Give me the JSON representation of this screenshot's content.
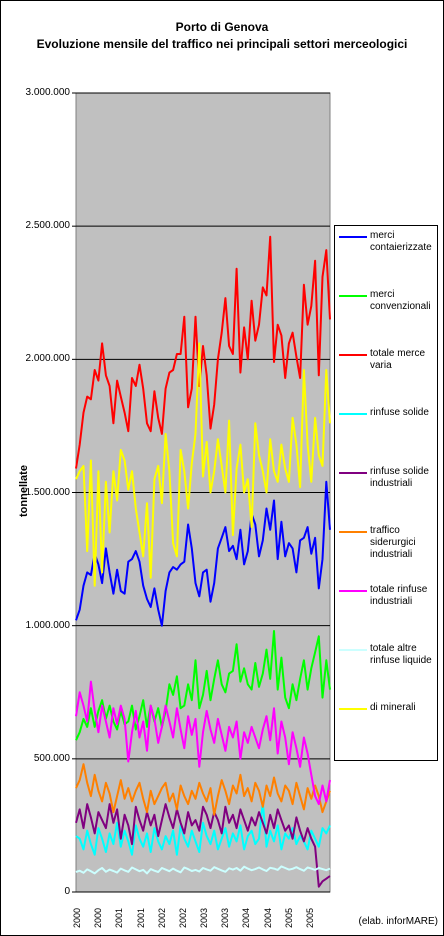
{
  "chart_data": {
    "type": "line",
    "title": "Porto di Genova",
    "subtitle": "Evoluzione mensile del traffico nei principali settori merceologici",
    "ylabel": "tonnellate",
    "xlabel": "",
    "ylim": [
      0,
      3000000
    ],
    "yticks": [
      0,
      500000,
      1000000,
      1500000,
      2000000,
      2500000,
      3000000
    ],
    "ytick_labels": [
      "0",
      "500.000",
      "1.000.000",
      "1.500.000",
      "2.000.000",
      "2.500.000",
      "3.000.000"
    ],
    "xtick_labels": [
      "2000",
      "2000",
      "2001",
      "2001",
      "2002",
      "2002",
      "2003",
      "2003",
      "2004",
      "2004",
      "2005",
      "2005"
    ],
    "grid": true,
    "legend_position": "right",
    "plot_background": "#c0c0c0",
    "n_months": 69,
    "credit": "(elab. inforMARE)",
    "series": [
      {
        "name": "merci contaierizzate",
        "color": "#0000ff",
        "values": [
          1020000,
          1060000,
          1150000,
          1200000,
          1190000,
          1270000,
          1230000,
          1160000,
          1290000,
          1200000,
          1120000,
          1210000,
          1130000,
          1120000,
          1240000,
          1250000,
          1280000,
          1240000,
          1150000,
          1100000,
          1070000,
          1140000,
          1060000,
          1000000,
          1130000,
          1200000,
          1220000,
          1210000,
          1230000,
          1240000,
          1380000,
          1290000,
          1160000,
          1110000,
          1200000,
          1210000,
          1090000,
          1160000,
          1290000,
          1330000,
          1370000,
          1280000,
          1300000,
          1250000,
          1360000,
          1230000,
          1280000,
          1420000,
          1380000,
          1260000,
          1320000,
          1440000,
          1360000,
          1470000,
          1250000,
          1390000,
          1260000,
          1310000,
          1290000,
          1200000,
          1320000,
          1330000,
          1370000,
          1270000,
          1330000,
          1140000,
          1250000,
          1540000,
          1360000
        ]
      },
      {
        "name": "merci convenzionali",
        "color": "#00ff00",
        "values": [
          570000,
          600000,
          650000,
          620000,
          690000,
          620000,
          680000,
          720000,
          650000,
          700000,
          640000,
          610000,
          680000,
          630000,
          640000,
          700000,
          610000,
          660000,
          720000,
          620000,
          700000,
          640000,
          690000,
          620000,
          680000,
          780000,
          740000,
          810000,
          690000,
          700000,
          780000,
          720000,
          870000,
          690000,
          740000,
          830000,
          720000,
          800000,
          870000,
          780000,
          750000,
          820000,
          830000,
          930000,
          790000,
          840000,
          780000,
          760000,
          860000,
          770000,
          820000,
          910000,
          800000,
          980000,
          760000,
          880000,
          730000,
          690000,
          780000,
          720000,
          800000,
          870000,
          760000,
          840000,
          900000,
          960000,
          730000,
          870000,
          760000
        ]
      },
      {
        "name": "totale merce varia",
        "color": "#ff0000",
        "values": [
          1590000,
          1680000,
          1800000,
          1860000,
          1850000,
          1960000,
          1920000,
          2060000,
          1940000,
          1900000,
          1760000,
          1920000,
          1860000,
          1800000,
          1730000,
          1930000,
          1900000,
          1980000,
          1890000,
          1760000,
          1730000,
          1880000,
          1780000,
          1720000,
          1890000,
          1950000,
          1960000,
          2020000,
          2020000,
          2160000,
          1820000,
          1890000,
          2160000,
          1900000,
          2050000,
          1940000,
          1740000,
          1830000,
          2000000,
          2100000,
          2230000,
          2050000,
          2020000,
          2340000,
          1950000,
          2120000,
          2000000,
          2220000,
          2070000,
          2130000,
          2270000,
          2240000,
          2460000,
          1990000,
          2130000,
          2090000,
          1930000,
          2060000,
          2100000,
          2010000,
          1930000,
          2280000,
          2130000,
          2200000,
          2370000,
          1940000,
          2310000,
          2410000,
          2150000
        ]
      },
      {
        "name": "rinfuse solide",
        "color": "#00ffff",
        "values": [
          210000,
          200000,
          160000,
          230000,
          180000,
          140000,
          240000,
          200000,
          150000,
          220000,
          180000,
          260000,
          170000,
          230000,
          190000,
          140000,
          250000,
          200000,
          170000,
          220000,
          150000,
          240000,
          190000,
          160000,
          210000,
          180000,
          230000,
          140000,
          250000,
          200000,
          170000,
          230000,
          190000,
          150000,
          260000,
          210000,
          180000,
          230000,
          160000,
          200000,
          240000,
          170000,
          220000,
          190000,
          250000,
          160000,
          210000,
          230000,
          180000,
          200000,
          340000,
          170000,
          230000,
          190000,
          250000,
          160000,
          220000,
          200000,
          240000,
          180000,
          210000,
          190000,
          160000,
          230000,
          200000,
          170000,
          240000,
          220000,
          250000
        ]
      },
      {
        "name": "rinfuse solide industriali",
        "color": "#800080",
        "values": [
          260000,
          310000,
          240000,
          330000,
          280000,
          220000,
          300000,
          270000,
          240000,
          330000,
          260000,
          310000,
          200000,
          290000,
          250000,
          180000,
          320000,
          270000,
          230000,
          300000,
          250000,
          290000,
          210000,
          270000,
          330000,
          280000,
          240000,
          310000,
          260000,
          220000,
          300000,
          250000,
          270000,
          230000,
          320000,
          290000,
          240000,
          300000,
          270000,
          220000,
          320000,
          260000,
          290000,
          240000,
          310000,
          270000,
          230000,
          280000,
          250000,
          300000,
          260000,
          220000,
          290000,
          240000,
          310000,
          270000,
          230000,
          250000,
          200000,
          280000,
          230000,
          190000,
          240000,
          200000,
          170000,
          20000,
          40000,
          50000,
          60000
        ]
      },
      {
        "name": "traffico siderurgici industriali",
        "color": "#ff8000",
        "values": [
          390000,
          420000,
          480000,
          410000,
          360000,
          440000,
          380000,
          340000,
          410000,
          370000,
          300000,
          360000,
          420000,
          350000,
          390000,
          340000,
          380000,
          410000,
          350000,
          300000,
          380000,
          330000,
          360000,
          390000,
          410000,
          340000,
          370000,
          310000,
          400000,
          360000,
          330000,
          380000,
          350000,
          410000,
          370000,
          340000,
          390000,
          290000,
          360000,
          420000,
          380000,
          330000,
          400000,
          370000,
          440000,
          360000,
          390000,
          340000,
          410000,
          380000,
          320000,
          400000,
          360000,
          430000,
          370000,
          340000,
          400000,
          380000,
          330000,
          410000,
          360000,
          310000,
          390000,
          350000,
          400000,
          360000,
          300000,
          340000,
          380000
        ]
      },
      {
        "name": "totale rinfuse industriali",
        "color": "#ff00ff",
        "values": [
          660000,
          750000,
          700000,
          640000,
          790000,
          680000,
          600000,
          700000,
          640000,
          580000,
          690000,
          630000,
          700000,
          650000,
          490000,
          600000,
          680000,
          580000,
          640000,
          530000,
          700000,
          650000,
          560000,
          620000,
          700000,
          640000,
          580000,
          690000,
          610000,
          540000,
          660000,
          590000,
          650000,
          470000,
          600000,
          680000,
          610000,
          560000,
          650000,
          590000,
          530000,
          620000,
          580000,
          640000,
          500000,
          600000,
          560000,
          620000,
          580000,
          540000,
          610000,
          660000,
          570000,
          690000,
          520000,
          640000,
          580000,
          480000,
          600000,
          540000,
          470000,
          580000,
          520000,
          440000,
          360000,
          330000,
          400000,
          340000,
          420000
        ]
      },
      {
        "name": "totale altre rinfuse liquide",
        "color": "#ccffff",
        "values": [
          75000,
          80000,
          72000,
          85000,
          78000,
          70000,
          82000,
          90000,
          76000,
          84000,
          79000,
          73000,
          88000,
          81000,
          76000,
          92000,
          85000,
          78000,
          83000,
          70000,
          86000,
          80000,
          75000,
          90000,
          84000,
          78000,
          88000,
          80000,
          74000,
          92000,
          86000,
          79000,
          83000,
          77000,
          90000,
          85000,
          80000,
          93000,
          87000,
          81000,
          76000,
          89000,
          84000,
          90000,
          80000,
          95000,
          88000,
          82000,
          86000,
          92000,
          85000,
          79000,
          91000,
          88000,
          83000,
          96000,
          90000,
          84000,
          87000,
          93000,
          86000,
          80000,
          92000,
          88000,
          83000,
          90000,
          86000,
          82000,
          88000
        ]
      },
      {
        "name": "di minerali",
        "color": "#ffff00",
        "values": [
          1550000,
          1580000,
          1600000,
          1280000,
          1620000,
          1150000,
          1580000,
          1200000,
          1540000,
          1350000,
          1580000,
          1470000,
          1660000,
          1620000,
          1510000,
          1580000,
          1440000,
          1350000,
          1260000,
          1460000,
          1180000,
          1550000,
          1600000,
          1460000,
          1720000,
          1580000,
          1310000,
          1260000,
          1660000,
          1580000,
          1440000,
          1610000,
          1720000,
          2060000,
          1560000,
          1690000,
          1500000,
          1580000,
          1700000,
          1600000,
          1500000,
          1770000,
          1340000,
          1590000,
          1680000,
          1500000,
          1550000,
          1370000,
          1760000,
          1640000,
          1580000,
          1500000,
          1700000,
          1580000,
          1540000,
          1680000,
          1590000,
          1540000,
          1780000,
          1680000,
          1520000,
          1960000,
          1680000,
          1540000,
          1780000,
          1640000,
          1600000,
          1960000,
          1760000
        ]
      }
    ]
  }
}
